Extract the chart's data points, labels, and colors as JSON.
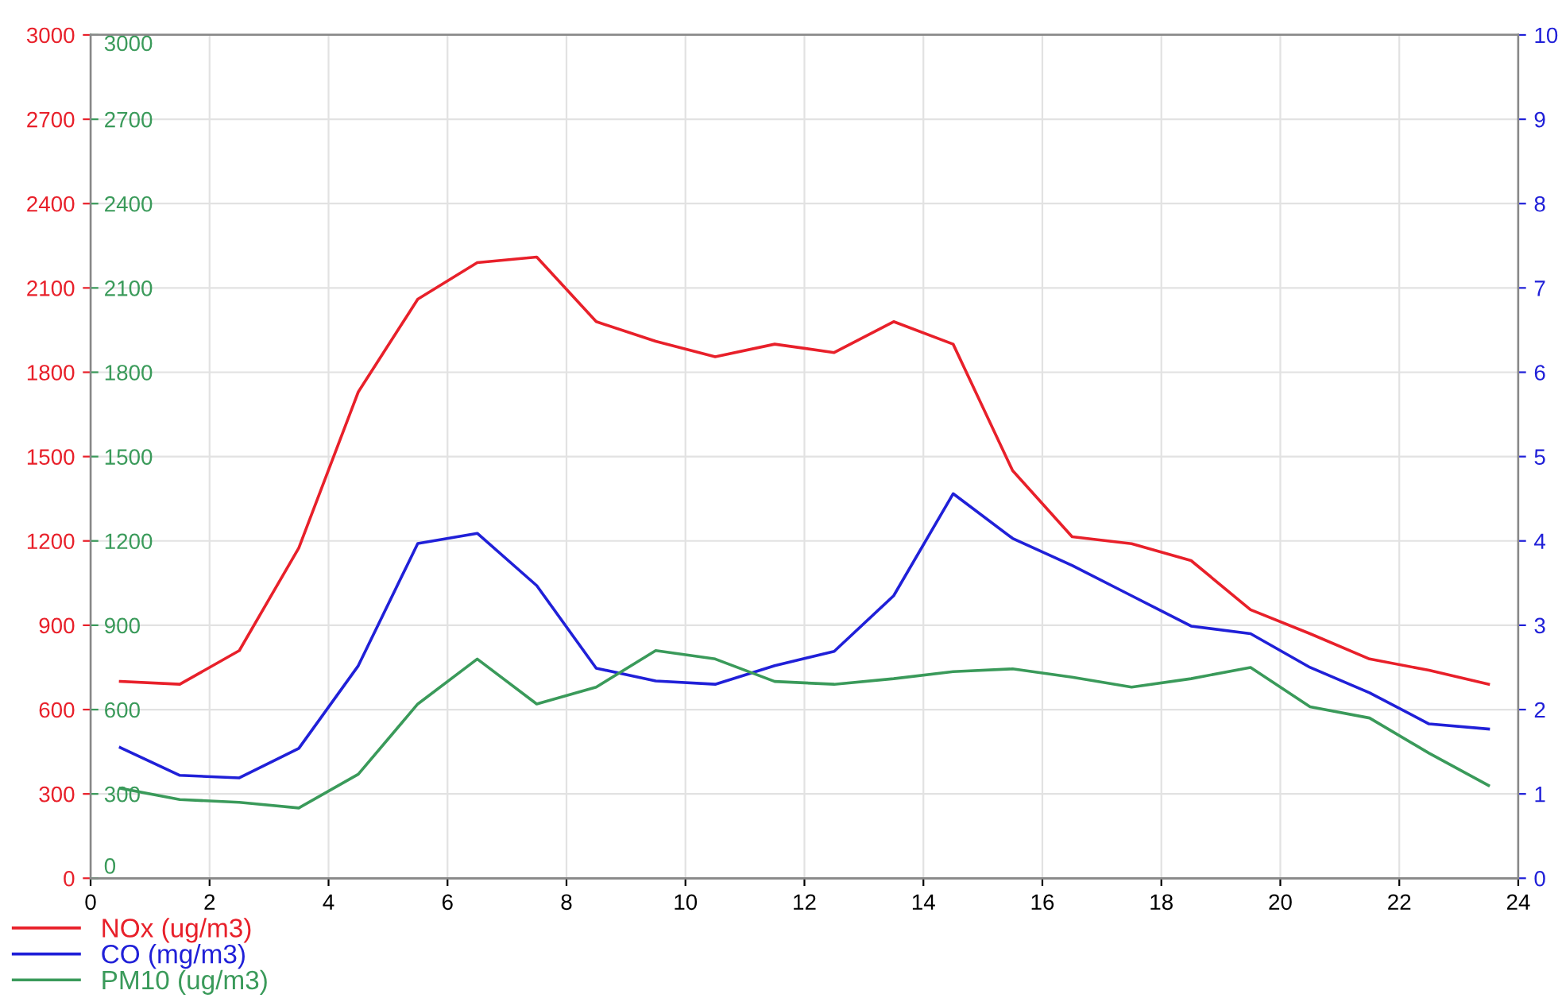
{
  "chart_data": {
    "type": "line",
    "x": [
      0.5,
      1.5,
      2.5,
      3.5,
      4.5,
      5.5,
      6.5,
      7.5,
      8.5,
      9.5,
      10.5,
      11.5,
      12.5,
      13.5,
      14.5,
      15.5,
      16.5,
      17.5,
      18.5,
      19.5,
      20.5,
      21.5,
      22.5,
      23.5
    ],
    "series": [
      {
        "name": "NOx (ug/m3)",
        "color": "#e8202a",
        "axis": "y",
        "values": [
          700,
          690,
          810,
          1175,
          1730,
          2060,
          2190,
          2210,
          1980,
          1910,
          1855,
          1900,
          1870,
          1980,
          1900,
          1450,
          1215,
          1190,
          1130,
          955,
          870,
          780,
          740,
          690
        ]
      },
      {
        "name": "CO (mg/m3)",
        "color": "#2020d8",
        "axis": "y2",
        "values": [
          1.55,
          1.22,
          1.19,
          1.54,
          2.52,
          3.97,
          4.09,
          3.47,
          2.49,
          2.34,
          2.3,
          2.52,
          2.69,
          3.35,
          4.56,
          4.03,
          3.71,
          3.35,
          2.99,
          2.9,
          2.5,
          2.2,
          1.83,
          1.77
        ]
      },
      {
        "name": "PM10 (ug/m3)",
        "color": "#3a9a5a",
        "axis": "y3",
        "values": [
          320,
          280,
          270,
          250,
          370,
          620,
          780,
          620,
          680,
          810,
          780,
          700,
          690,
          710,
          735,
          745,
          715,
          680,
          710,
          750,
          610,
          570,
          445,
          330
        ]
      }
    ],
    "xlim": [
      0,
      24
    ],
    "xticks": [
      0,
      2,
      4,
      6,
      8,
      10,
      12,
      14,
      16,
      18,
      20,
      22,
      24
    ],
    "ylim": [
      0,
      3000
    ],
    "yticks": [
      0,
      300,
      600,
      900,
      1200,
      1500,
      1800,
      2100,
      2400,
      2700,
      3000
    ],
    "y2lim": [
      0,
      10
    ],
    "y2ticks": [
      0,
      1,
      2,
      3,
      4,
      5,
      6,
      7,
      8,
      9,
      10
    ],
    "y3lim": [
      0,
      3000
    ],
    "y3ticks": [
      0,
      300,
      600,
      900,
      1200,
      1500,
      1800,
      2100,
      2400,
      2700,
      3000
    ],
    "grid": true,
    "legend": "bottom left",
    "marker": "none",
    "line_style": "solid"
  }
}
